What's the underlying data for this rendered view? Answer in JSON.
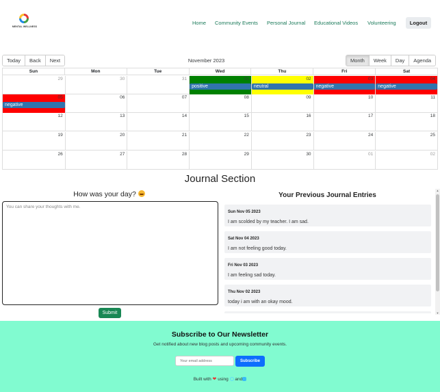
{
  "header": {
    "logo_text": "MENTAL WELLNESS",
    "nav": [
      {
        "label": "Home"
      },
      {
        "label": "Community Events"
      },
      {
        "label": "Personal Journal"
      },
      {
        "label": "Educational Videos"
      },
      {
        "label": "Volunteering"
      }
    ],
    "logout_label": "Logout"
  },
  "calendar": {
    "toolbar_left": [
      "Today",
      "Back",
      "Next"
    ],
    "label": "November 2023",
    "views": [
      "Month",
      "Week",
      "Day",
      "Agenda"
    ],
    "active_view": "Month",
    "weekdays": [
      "Sun",
      "Mon",
      "Tue",
      "Wed",
      "Thu",
      "Fri",
      "Sat"
    ],
    "weeks": [
      [
        "29",
        "30",
        "31",
        "01",
        "02",
        "03",
        "04"
      ],
      [
        "05",
        "06",
        "07",
        "08",
        "09",
        "10",
        "11"
      ],
      [
        "12",
        "13",
        "14",
        "15",
        "16",
        "17",
        "18"
      ],
      [
        "19",
        "20",
        "21",
        "22",
        "23",
        "24",
        "25"
      ],
      [
        "26",
        "27",
        "28",
        "29",
        "30",
        "01",
        "02"
      ]
    ],
    "events": [
      {
        "label": "positive",
        "day_color": "#008000"
      },
      {
        "label": "neutral",
        "day_color": "#ffff00"
      },
      {
        "label": "negative",
        "day_color": "#ff0000"
      },
      {
        "label": "negative",
        "day_color": "#ff0000"
      },
      {
        "label": "negative",
        "day_color": "#ff0000"
      }
    ],
    "event_color": "#3174ad"
  },
  "journal": {
    "section_title": "Journal Section",
    "prompt": "How was your day?",
    "placeholder": "You can share your thoughts with me.",
    "submit_label": "Submit",
    "prev_title": "Your Previous Journal Entries",
    "entries": [
      {
        "date": "Sun Nov 05 2023",
        "text": "I am scolded by my teacher. I am sad."
      },
      {
        "date": "Sat Nov 04 2023",
        "text": "I am not feeling good today."
      },
      {
        "date": "Fri Nov 03 2023",
        "text": "I am feeling sad today."
      },
      {
        "date": "Thu Nov 02 2023",
        "text": "today i am with an okay mood."
      }
    ]
  },
  "footer": {
    "title": "Subscribe to Our Newsletter",
    "subtitle": "Get notified about new blog posts and upcoming community events.",
    "email_placeholder": "Your email address",
    "subscribe_label": "Subscribe",
    "built_prefix": "Built with",
    "built_using": "using",
    "built_and": "and",
    "background": "#81fbd0"
  }
}
